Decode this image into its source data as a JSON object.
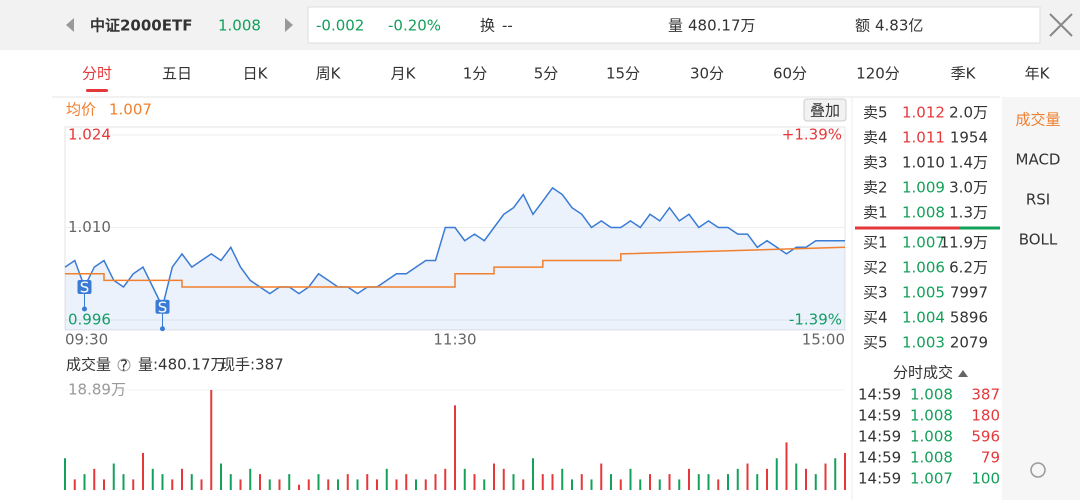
{
  "header": {
    "name": "中证2000ETF",
    "price": "1.008",
    "change": "-0.002",
    "change_pct": "-0.20%",
    "turnover_label": "换",
    "turnover": "--",
    "volume_label": "量",
    "volume": "480.17万",
    "amount_label": "额",
    "amount": "4.83亿"
  },
  "tabs": [
    "分时",
    "五日",
    "日K",
    "周K",
    "月K",
    "1分",
    "5分",
    "15分",
    "30分",
    "60分",
    "120分",
    "季K",
    "年K"
  ],
  "price_chart": {
    "type": "line",
    "avg_label": "均价",
    "avg_value": "1.007",
    "overlay_button": "叠加",
    "xlim": [
      0,
      240
    ],
    "xticks": [
      {
        "value": 0,
        "label": "09:30"
      },
      {
        "value": 120,
        "label": "11:30"
      },
      {
        "value": 240,
        "label": "15:00"
      }
    ],
    "ylim": [
      0.996,
      1.024
    ],
    "yticks": [
      1.024,
      {
        "value": 1.01,
        "label": "1.010"
      },
      0.996
    ],
    "y2lim": [
      -1.39,
      1.39
    ],
    "y2ticks": [
      {
        "value": 1.39,
        "label": "+1.39%"
      },
      {
        "value": -1.39,
        "label": "-1.39%"
      }
    ],
    "series": [
      {
        "name": "price",
        "color": "#3a7bd5",
        "x": [
          0,
          3,
          6,
          9,
          12,
          15,
          18,
          21,
          24,
          27,
          30,
          33,
          36,
          39,
          42,
          45,
          48,
          51,
          54,
          57,
          60,
          63,
          66,
          69,
          72,
          75,
          78,
          81,
          84,
          87,
          90,
          93,
          96,
          99,
          102,
          105,
          108,
          111,
          114,
          117,
          120,
          123,
          126,
          129,
          132,
          135,
          138,
          141,
          144,
          147,
          150,
          153,
          156,
          159,
          162,
          165,
          168,
          171,
          174,
          177,
          180,
          183,
          186,
          189,
          192,
          195,
          198,
          201,
          204,
          207,
          210,
          213,
          216,
          219,
          222,
          225,
          228,
          231,
          234,
          237,
          240
        ],
        "values": [
          1.004,
          1.005,
          1.001,
          1.004,
          1.005,
          1.002,
          1.001,
          1.003,
          1.004,
          1.001,
          0.998,
          1.004,
          1.006,
          1.004,
          1.005,
          1.006,
          1.005,
          1.007,
          1.004,
          1.002,
          1.001,
          1.0,
          1.001,
          1.001,
          1.0,
          1.001,
          1.003,
          1.002,
          1.001,
          1.001,
          1.0,
          1.001,
          1.001,
          1.002,
          1.003,
          1.003,
          1.004,
          1.005,
          1.005,
          1.01,
          1.01,
          1.008,
          1.009,
          1.008,
          1.01,
          1.012,
          1.013,
          1.015,
          1.012,
          1.014,
          1.016,
          1.015,
          1.013,
          1.012,
          1.01,
          1.011,
          1.01,
          1.01,
          1.011,
          1.01,
          1.012,
          1.011,
          1.013,
          1.011,
          1.012,
          1.01,
          1.011,
          1.01,
          1.01,
          1.009,
          1.009,
          1.007,
          1.008,
          1.007,
          1.006,
          1.007,
          1.007,
          1.008,
          1.008,
          1.008,
          1.008
        ]
      },
      {
        "name": "average",
        "color": "#f07f2e",
        "x": [
          0,
          12,
          12,
          36,
          36,
          120,
          120,
          132,
          132,
          147,
          147,
          171,
          171,
          240
        ],
        "values": [
          1.003,
          1.003,
          1.002,
          1.002,
          1.001,
          1.001,
          1.003,
          1.003,
          1.004,
          1.004,
          1.005,
          1.005,
          1.006,
          1.007
        ]
      }
    ],
    "markers": [
      {
        "x": 6,
        "value": 1.001,
        "label": "S"
      },
      {
        "x": 30,
        "value": 0.998,
        "label": "S"
      }
    ]
  },
  "volume_chart": {
    "type": "bar",
    "title": "成交量",
    "help": "?",
    "total": "量:480.17万",
    "last": "现手:387",
    "xlim": [
      0,
      240
    ],
    "ylim": [
      0,
      18.89
    ],
    "yticks": [
      {
        "value": 18.89,
        "label": "18.89万"
      }
    ],
    "palette": {
      "up": "#e5383b",
      "down": "#13a05a"
    },
    "x": [
      0,
      3,
      6,
      9,
      12,
      15,
      18,
      21,
      24,
      27,
      30,
      33,
      36,
      39,
      42,
      45,
      48,
      51,
      54,
      57,
      60,
      63,
      66,
      69,
      72,
      75,
      78,
      81,
      84,
      87,
      90,
      93,
      96,
      99,
      102,
      105,
      108,
      111,
      114,
      117,
      120,
      123,
      126,
      129,
      132,
      135,
      138,
      141,
      144,
      147,
      150,
      153,
      156,
      159,
      162,
      165,
      168,
      171,
      174,
      177,
      180,
      183,
      186,
      189,
      192,
      195,
      198,
      201,
      204,
      207,
      210,
      213,
      216,
      219,
      222,
      225,
      228,
      231,
      234,
      237,
      240
    ],
    "values": [
      6,
      2,
      3,
      4,
      2,
      5,
      3,
      2,
      7,
      4,
      3,
      2,
      4,
      3,
      2,
      18.89,
      5,
      3,
      2,
      4,
      3,
      2,
      2,
      3,
      1,
      2,
      3,
      2,
      2,
      3,
      2,
      3,
      2,
      4,
      2,
      3,
      2,
      2,
      3,
      4,
      16,
      4,
      3,
      2,
      5,
      4,
      3,
      2,
      6,
      3,
      3,
      4,
      2,
      3,
      2,
      5,
      3,
      2,
      4,
      2,
      3,
      2,
      3,
      2,
      4,
      3,
      3,
      2,
      3,
      4,
      5,
      3,
      4,
      6,
      9,
      5,
      4,
      3,
      5,
      6,
      7
    ],
    "direction": [
      "down",
      "up",
      "down",
      "up",
      "up",
      "down",
      "down",
      "up",
      "up",
      "down",
      "down",
      "up",
      "up",
      "down",
      "up",
      "up",
      "down",
      "down",
      "up",
      "down",
      "up",
      "down",
      "up",
      "down",
      "up",
      "up",
      "down",
      "up",
      "down",
      "up",
      "down",
      "up",
      "up",
      "down",
      "up",
      "up",
      "down",
      "up",
      "up",
      "up",
      "up",
      "down",
      "up",
      "down",
      "up",
      "up",
      "down",
      "up",
      "down",
      "up",
      "up",
      "down",
      "down",
      "up",
      "down",
      "up",
      "down",
      "up",
      "down",
      "down",
      "up",
      "down",
      "up",
      "down",
      "up",
      "down",
      "down",
      "up",
      "down",
      "down",
      "up",
      "down",
      "up",
      "down",
      "up",
      "down",
      "up",
      "down",
      "up",
      "down",
      "up"
    ]
  },
  "order_book": {
    "asks": [
      {
        "label": "卖5",
        "price": "1.012",
        "volume": "2.0万",
        "color": "#e5383b"
      },
      {
        "label": "卖4",
        "price": "1.011",
        "volume": "1954",
        "color": "#e5383b"
      },
      {
        "label": "卖3",
        "price": "1.010",
        "volume": "1.4万",
        "color": "#333333"
      },
      {
        "label": "卖2",
        "price": "1.009",
        "volume": "3.0万",
        "color": "#13a05a"
      },
      {
        "label": "卖1",
        "price": "1.008",
        "volume": "1.3万",
        "color": "#13a05a"
      }
    ],
    "bids": [
      {
        "label": "买1",
        "price": "1.007",
        "volume": "11.9万",
        "color": "#13a05a"
      },
      {
        "label": "买2",
        "price": "1.006",
        "volume": "6.2万",
        "color": "#13a05a"
      },
      {
        "label": "买3",
        "price": "1.005",
        "volume": "7997",
        "color": "#13a05a"
      },
      {
        "label": "买4",
        "price": "1.004",
        "volume": "5896",
        "color": "#13a05a"
      },
      {
        "label": "买5",
        "price": "1.003",
        "volume": "2079",
        "color": "#13a05a"
      }
    ]
  },
  "trades": {
    "title": "分时成交",
    "rows": [
      {
        "time": "14:59",
        "price": "1.008",
        "volume": "387",
        "color": "#e5383b"
      },
      {
        "time": "14:59",
        "price": "1.008",
        "volume": "180",
        "color": "#e5383b"
      },
      {
        "time": "14:59",
        "price": "1.008",
        "volume": "596",
        "color": "#e5383b"
      },
      {
        "time": "14:59",
        "price": "1.008",
        "volume": "79",
        "color": "#e5383b"
      },
      {
        "time": "14:59",
        "price": "1.007",
        "volume": "100",
        "color": "#13a05a"
      }
    ]
  },
  "side_menu": [
    "成交量",
    "MACD",
    "RSI",
    "BOLL"
  ]
}
